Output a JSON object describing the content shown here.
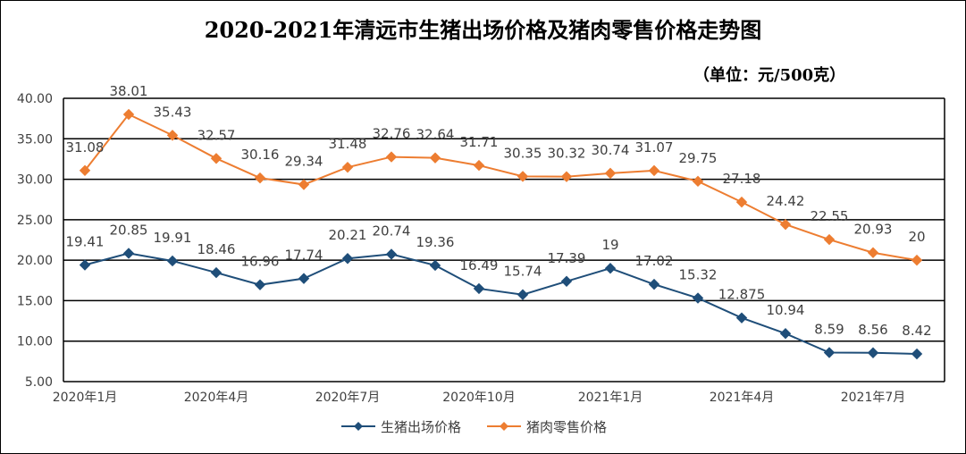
{
  "chart_data": {
    "type": "line",
    "title": "2020-2021年清远市生猪出场价格及猪肉零售价格走势图",
    "subtitle": "（单位：元/500克）",
    "ylim": [
      5,
      40
    ],
    "y_ticks": [
      "5.00",
      "10.00",
      "15.00",
      "20.00",
      "25.00",
      "30.00",
      "35.00",
      "40.00"
    ],
    "x_tick_labels": [
      "2020年1月",
      "2020年4月",
      "2020年7月",
      "2020年10月",
      "2021年1月",
      "2021年4月",
      "2021年7月"
    ],
    "x": [
      "2020-01",
      "2020-02",
      "2020-03",
      "2020-04",
      "2020-05",
      "2020-06",
      "2020-07",
      "2020-08",
      "2020-09",
      "2020-10",
      "2020-11",
      "2020-12",
      "2021-01",
      "2021-02",
      "2021-03",
      "2021-04",
      "2021-05",
      "2021-06",
      "2021-07",
      "2021-08"
    ],
    "grid": true,
    "legend_position": "bottom",
    "series": [
      {
        "name": "生猪出场价格",
        "color": "#1f4e79",
        "marker": "diamond",
        "values": [
          19.41,
          20.85,
          19.91,
          18.46,
          16.96,
          17.74,
          20.21,
          20.74,
          19.36,
          16.49,
          15.74,
          17.39,
          19,
          17.02,
          15.32,
          12.875,
          10.94,
          8.59,
          8.56,
          8.42
        ],
        "labels": [
          "19.41",
          "20.85",
          "19.91",
          "18.46",
          "16.96",
          "17.74",
          "20.21",
          "20.74",
          "19.36",
          "16.49",
          "15.74",
          "17.39",
          "19",
          "17.02",
          "15.32",
          "12.875",
          "10.94",
          "8.59",
          "8.56",
          "8.42"
        ]
      },
      {
        "name": "猪肉零售价格",
        "color": "#ed7d31",
        "marker": "diamond",
        "values": [
          31.08,
          38.01,
          35.43,
          32.57,
          30.16,
          29.34,
          31.48,
          32.76,
          32.64,
          31.71,
          30.35,
          30.32,
          30.74,
          31.07,
          29.75,
          27.18,
          24.42,
          22.55,
          20.93,
          20
        ],
        "labels": [
          "31.08",
          "38.01",
          "35.43",
          "32.57",
          "30.16",
          "29.34",
          "31.48",
          "32.76",
          "32.64",
          "31.71",
          "30.35",
          "30.32",
          "30.74",
          "31.07",
          "29.75",
          "27.18",
          "24.42",
          "22.55",
          "20.93",
          "20"
        ]
      }
    ]
  }
}
